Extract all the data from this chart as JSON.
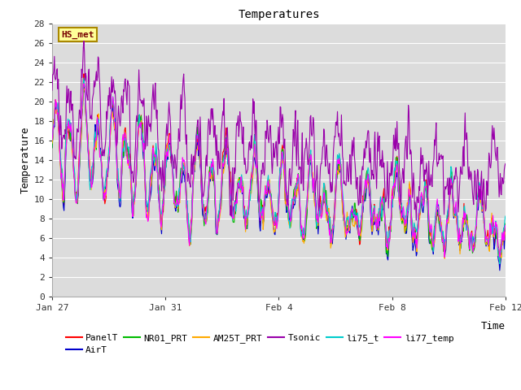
{
  "title": "Temperatures",
  "xlabel": "Time",
  "ylabel": "Temperature",
  "ylim": [
    0,
    28
  ],
  "yticks": [
    0,
    2,
    4,
    6,
    8,
    10,
    12,
    14,
    16,
    18,
    20,
    22,
    24,
    26,
    28
  ],
  "annotation_text": "HS_met",
  "plot_bg_color": "#dcdcdc",
  "series_colors": {
    "PanelT": "#ff0000",
    "AirT": "#0000cc",
    "NR01_PRT": "#00bb00",
    "AM25T_PRT": "#ffaa00",
    "Tsonic": "#9900aa",
    "li75_t": "#00cccc",
    "li77_temp": "#ff00ff"
  },
  "xtick_labels": [
    "Jan 27",
    "Jan 31",
    "Feb 4",
    "Feb 8",
    "Feb 12"
  ],
  "xtick_days": [
    0,
    4,
    8,
    12,
    16
  ],
  "n_points": 800,
  "linewidth": 0.8,
  "grid_color": "#ffffff",
  "spine_color": "#aaaaaa",
  "tick_fontsize": 8,
  "label_fontsize": 9,
  "title_fontsize": 10,
  "legend_fontsize": 8
}
